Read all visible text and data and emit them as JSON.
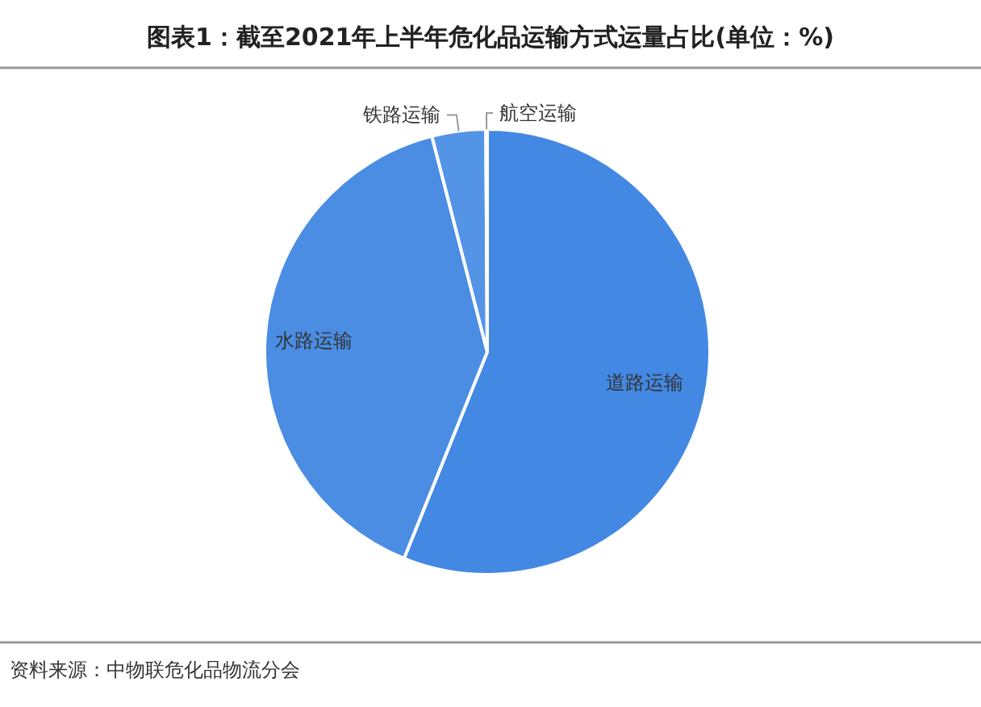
{
  "chart_data": {
    "type": "pie",
    "title": "图表1：截至2021年上半年危化品运输方式运量占比(单位：%)",
    "categories": [
      "道路运输",
      "水路运输",
      "铁路运输",
      "航空运输"
    ],
    "values": [
      56.1,
      39.9,
      3.9,
      0.1
    ],
    "colors": [
      "#4388e2",
      "#4a8de3",
      "#5494e6",
      "#5898e8"
    ],
    "annotations": [
      "资料来源：中物联危化品物流分会"
    ]
  }
}
